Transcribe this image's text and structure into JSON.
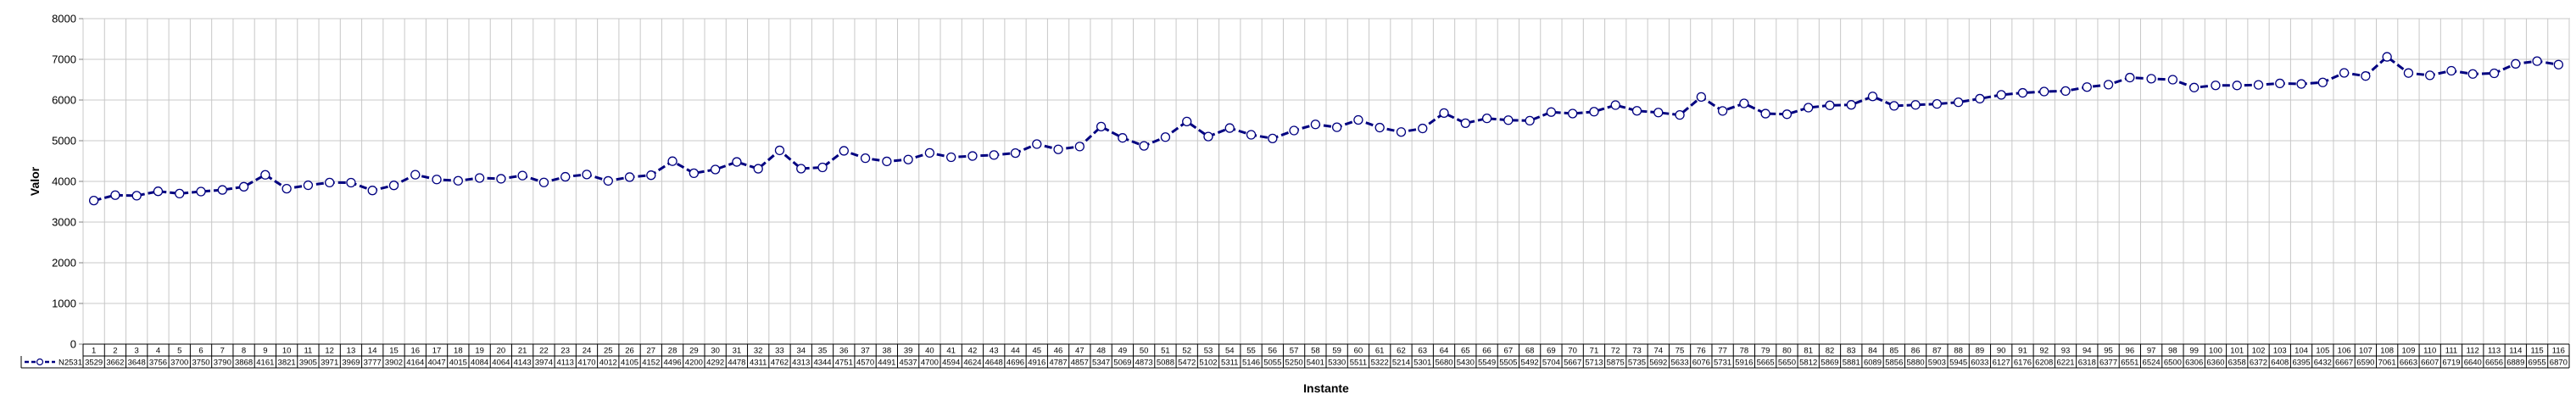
{
  "chart_data": {
    "type": "line",
    "ylabel": "Valor",
    "xlabel": "Instante",
    "ylim": [
      0,
      8000
    ],
    "ytick_step": 1000,
    "grid": true,
    "legend": "data-table-left",
    "series": [
      {
        "name": "N2531",
        "color": "#000080",
        "marker_fill": "#ffffff",
        "values": [
          3529,
          3662,
          3648,
          3756,
          3700,
          3750,
          3790,
          3868,
          4161,
          3821,
          3905,
          3971,
          3969,
          3777,
          3902,
          4164,
          4047,
          4015,
          4084,
          4064,
          4143,
          3974,
          4113,
          4170,
          4012,
          4105,
          4152,
          4496,
          4200,
          4292,
          4478,
          4311,
          4762,
          4313,
          4344,
          4751,
          4570,
          4491,
          4537,
          4700,
          4594,
          4624,
          4648,
          4696,
          4916,
          4787,
          4857,
          5347,
          5069,
          4873,
          5088,
          5472,
          5102,
          5311,
          5146,
          5055,
          5250,
          5401,
          5330,
          5511,
          5322,
          5214,
          5301,
          5680,
          5430,
          5549,
          5505,
          5492,
          5704,
          5667,
          5713,
          5875,
          5735,
          5692,
          5633,
          6076,
          5731,
          5916,
          5665,
          5650,
          5812,
          5869,
          5881,
          6089,
          5856,
          5880,
          5903,
          5945,
          6033,
          6127,
          6176,
          6208,
          6221,
          6318,
          6377,
          6551,
          6524,
          6500,
          6306,
          6360,
          6358,
          6372,
          6408,
          6395,
          6432,
          6667,
          6590,
          7061,
          6663,
          6607,
          6719,
          6640,
          6656,
          6889,
          6955,
          6870
        ]
      }
    ],
    "categories": [
      "1",
      "2",
      "3",
      "4",
      "5",
      "6",
      "7",
      "8",
      "9",
      "10",
      "11",
      "12",
      "13",
      "14",
      "15",
      "16",
      "17",
      "18",
      "19",
      "20",
      "21",
      "22",
      "23",
      "24",
      "25",
      "26",
      "27",
      "28",
      "29",
      "30",
      "31",
      "32",
      "33",
      "34",
      "35",
      "36",
      "37",
      "38",
      "39",
      "40",
      "41",
      "42",
      "43",
      "44",
      "45",
      "46",
      "47",
      "48",
      "49",
      "50",
      "51",
      "52",
      "53",
      "54",
      "55",
      "56",
      "57",
      "58",
      "59",
      "60",
      "61",
      "62",
      "63",
      "64",
      "65",
      "66",
      "67",
      "68",
      "69",
      "70",
      "71",
      "72",
      "73",
      "74",
      "75",
      "76",
      "77",
      "78",
      "79",
      "80",
      "81",
      "82",
      "83",
      "84",
      "85",
      "86",
      "87",
      "88",
      "89",
      "90",
      "91",
      "92",
      "93",
      "94",
      "95",
      "96",
      "97",
      "98",
      "99",
      "100",
      "101",
      "102",
      "103",
      "104",
      "105",
      "106",
      "107",
      "108",
      "109",
      "110",
      "111",
      "112",
      "113",
      "114",
      "115",
      "116"
    ]
  }
}
